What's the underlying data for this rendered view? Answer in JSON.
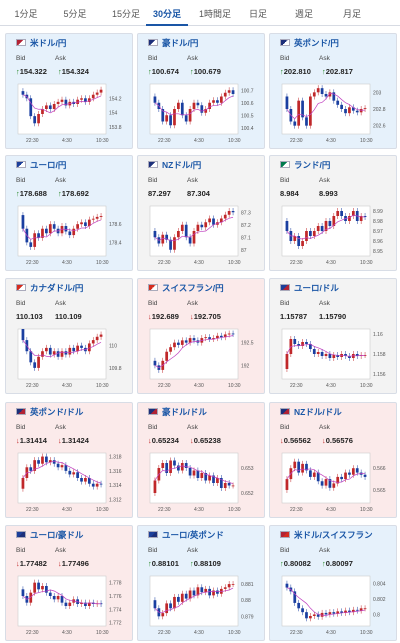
{
  "tabs": [
    {
      "label": "1分足"
    },
    {
      "label": "5分足"
    },
    {
      "label": "15分足"
    },
    {
      "label": "30分足",
      "active": true
    },
    {
      "label": "1時間足"
    },
    {
      "label": "日足"
    },
    {
      "label": "週足"
    },
    {
      "label": "月足"
    }
  ],
  "labels": {
    "bid": "Bid",
    "ask": "Ask"
  },
  "colors": {
    "up_bg": "#e6f1fb",
    "down_bg": "#fbeaea",
    "flat_bg": "#f3f3f3",
    "candle_up": "#c0282a",
    "candle_down": "#1a3fa0",
    "ma_line": "#c040c0",
    "title": "#1a56a6",
    "arrow_up": "#2a8a2a",
    "arrow_down": "#c0282a"
  },
  "cards": [
    {
      "title": "米ドル/円",
      "dir": "up",
      "bid": "154.322",
      "ask": "154.324",
      "flag": "us-jp-flag-icon",
      "chart_data": {
        "type": "candlestick",
        "x_ticks": [
          "22:30",
          "4:30",
          "10:30"
        ],
        "y_ticks": [
          "154.2",
          "154",
          "153.8"
        ],
        "ylim": [
          153.7,
          154.4
        ],
        "close": [
          154.25,
          154.2,
          153.95,
          153.85,
          153.98,
          154.05,
          154.1,
          154.05,
          154.12,
          154.15,
          154.18,
          154.1,
          154.15,
          154.12,
          154.18,
          154.2,
          154.15,
          154.2,
          154.25,
          154.28,
          154.32
        ]
      }
    },
    {
      "title": "豪ドル/円",
      "dir": "up",
      "bid": "100.674",
      "ask": "100.679",
      "flag": "au-jp-flag-icon",
      "chart_data": {
        "type": "candlestick",
        "x_ticks": [
          "22:30",
          "4:30",
          "10:30"
        ],
        "y_ticks": [
          "100.7",
          "100.6",
          "100.5",
          "100.4"
        ],
        "ylim": [
          100.35,
          100.75
        ],
        "close": [
          100.6,
          100.55,
          100.45,
          100.5,
          100.42,
          100.55,
          100.6,
          100.5,
          100.45,
          100.55,
          100.6,
          100.58,
          100.52,
          100.55,
          100.6,
          100.62,
          100.6,
          100.65,
          100.68,
          100.7,
          100.67
        ]
      }
    },
    {
      "title": "英ポンド/円",
      "dir": "up",
      "bid": "202.810",
      "ask": "202.817",
      "flag": "gb-jp-flag-icon",
      "chart_data": {
        "type": "candlestick",
        "x_ticks": [
          "22:30",
          "4:30",
          "10:30"
        ],
        "y_ticks": [
          "203",
          "202.8",
          "202.6"
        ],
        "ylim": [
          202.5,
          203.1
        ],
        "close": [
          202.8,
          202.65,
          202.6,
          202.9,
          202.7,
          202.6,
          202.95,
          203.0,
          203.05,
          202.98,
          202.95,
          203.0,
          202.9,
          202.85,
          202.8,
          202.75,
          202.82,
          202.78,
          202.76,
          202.8,
          202.81
        ]
      }
    },
    {
      "title": "ユーロ/円",
      "dir": "up",
      "bid": "178.688",
      "ask": "178.692",
      "flag": "eu-jp-flag-icon",
      "chart_data": {
        "type": "candlestick",
        "x_ticks": [
          "22:30",
          "4:30",
          "10:30"
        ],
        "y_ticks": [
          "178.6",
          "178.4"
        ],
        "ylim": [
          178.25,
          178.8
        ],
        "close": [
          178.55,
          178.4,
          178.35,
          178.5,
          178.45,
          178.55,
          178.5,
          178.6,
          178.55,
          178.5,
          178.58,
          178.52,
          178.48,
          178.55,
          178.6,
          178.62,
          178.58,
          178.65,
          178.66,
          178.68,
          178.69
        ]
      }
    },
    {
      "title": "NZドル/円",
      "dir": "flat",
      "bid": "87.297",
      "ask": "87.304",
      "flag": "nz-jp-flag-icon",
      "chart_data": {
        "type": "candlestick",
        "x_ticks": [
          "22:30",
          "4:30",
          "10:30"
        ],
        "y_ticks": [
          "87.3",
          "87.2",
          "87.1",
          "87"
        ],
        "ylim": [
          86.95,
          87.35
        ],
        "close": [
          87.1,
          87.05,
          87.12,
          87.08,
          87.0,
          87.1,
          87.15,
          87.2,
          87.1,
          87.05,
          87.15,
          87.2,
          87.18,
          87.22,
          87.25,
          87.2,
          87.22,
          87.25,
          87.28,
          87.31,
          87.3
        ]
      }
    },
    {
      "title": "ランド/円",
      "dir": "flat",
      "bid": "8.984",
      "ask": "8.993",
      "flag": "za-jp-flag-icon",
      "chart_data": {
        "type": "candlestick",
        "x_ticks": [
          "22:30",
          "4:30",
          "10:30"
        ],
        "y_ticks": [
          "8.99",
          "8.98",
          "8.97",
          "8.96",
          "8.95"
        ],
        "ylim": [
          8.945,
          8.995
        ],
        "close": [
          8.97,
          8.96,
          8.965,
          8.955,
          8.96,
          8.97,
          8.965,
          8.97,
          8.975,
          8.97,
          8.98,
          8.975,
          8.985,
          8.99,
          8.985,
          8.98,
          8.985,
          8.99,
          8.98,
          8.985,
          8.984
        ]
      }
    },
    {
      "title": "カナダドル/円",
      "dir": "flat",
      "bid": "110.103",
      "ask": "110.109",
      "flag": "ca-jp-flag-icon",
      "chart_data": {
        "type": "candlestick",
        "x_ticks": [
          "22:30",
          "4:30",
          "10:30"
        ],
        "y_ticks": [
          "110",
          "109.8"
        ],
        "ylim": [
          109.7,
          110.15
        ],
        "close": [
          110.05,
          109.95,
          109.85,
          109.8,
          109.9,
          109.95,
          109.98,
          109.92,
          109.95,
          109.9,
          109.95,
          109.92,
          109.98,
          109.95,
          110.0,
          109.98,
          109.95,
          110.02,
          110.05,
          110.08,
          110.1
        ]
      }
    },
    {
      "title": "スイスフラン/円",
      "dir": "down",
      "bid": "192.689",
      "ask": "192.705",
      "flag": "ch-jp-flag-icon",
      "chart_data": {
        "type": "candlestick",
        "x_ticks": [
          "22:30",
          "4:30",
          "10:30"
        ],
        "y_ticks": [
          "192.5",
          "192"
        ],
        "ylim": [
          191.7,
          192.8
        ],
        "close": [
          192.0,
          191.9,
          192.1,
          192.3,
          192.4,
          192.5,
          192.45,
          192.55,
          192.5,
          192.6,
          192.55,
          192.5,
          192.6,
          192.62,
          192.58,
          192.6,
          192.65,
          192.62,
          192.68,
          192.7,
          192.69
        ]
      }
    },
    {
      "title": "ユーロ/ドル",
      "dir": "flat",
      "bid": "1.15787",
      "ask": "1.15790",
      "flag": "eu-us-flag-icon",
      "chart_data": {
        "type": "candlestick",
        "x_ticks": [
          "22:30",
          "4:30",
          "10:30"
        ],
        "y_ticks": [
          "1.16",
          "1.158",
          "1.156"
        ],
        "ylim": [
          1.1555,
          1.1605
        ],
        "close": [
          1.158,
          1.1595,
          1.159,
          1.1588,
          1.1592,
          1.159,
          1.1585,
          1.158,
          1.1582,
          1.1578,
          1.158,
          1.1576,
          1.1579,
          1.1577,
          1.158,
          1.1578,
          1.1576,
          1.158,
          1.1578,
          1.1579,
          1.1579
        ]
      }
    },
    {
      "title": "英ポンド/ドル",
      "dir": "down",
      "bid": "1.31414",
      "ask": "1.31424",
      "flag": "gb-us-flag-icon",
      "chart_data": {
        "type": "candlestick",
        "x_ticks": [
          "22:30",
          "4:30",
          "10:30"
        ],
        "y_ticks": [
          "1.318",
          "1.316",
          "1.314",
          "1.312"
        ],
        "ylim": [
          1.3115,
          1.3185
        ],
        "close": [
          1.315,
          1.3165,
          1.316,
          1.3175,
          1.317,
          1.318,
          1.3172,
          1.3175,
          1.317,
          1.3165,
          1.3168,
          1.316,
          1.3155,
          1.3158,
          1.315,
          1.3145,
          1.315,
          1.3142,
          1.3138,
          1.3142,
          1.3141
        ]
      }
    },
    {
      "title": "豪ドル/ドル",
      "dir": "down",
      "bid": "0.65234",
      "ask": "0.65238",
      "flag": "au-us-flag-icon",
      "chart_data": {
        "type": "candlestick",
        "x_ticks": [
          "22:30",
          "4:30",
          "10:30"
        ],
        "y_ticks": [
          "0.653",
          "0.652"
        ],
        "ylim": [
          0.6516,
          0.6536
        ],
        "close": [
          0.6525,
          0.653,
          0.6532,
          0.6528,
          0.6533,
          0.6531,
          0.6529,
          0.6532,
          0.653,
          0.6527,
          0.6529,
          0.6526,
          0.6528,
          0.6525,
          0.6527,
          0.6524,
          0.6526,
          0.6522,
          0.6524,
          0.6523,
          0.6523
        ]
      }
    },
    {
      "title": "NZドル/ドル",
      "dir": "down",
      "bid": "0.56562",
      "ask": "0.56576",
      "flag": "nz-us-flag-icon",
      "chart_data": {
        "type": "candlestick",
        "x_ticks": [
          "22:30",
          "4:30",
          "10:30"
        ],
        "y_ticks": [
          "0.566",
          "0.565"
        ],
        "ylim": [
          0.5644,
          0.5667
        ],
        "close": [
          0.5655,
          0.566,
          0.5663,
          0.5658,
          0.5662,
          0.5659,
          0.5656,
          0.5658,
          0.5654,
          0.5652,
          0.5655,
          0.5651,
          0.5653,
          0.5656,
          0.5655,
          0.5658,
          0.5657,
          0.566,
          0.5658,
          0.5657,
          0.5656
        ]
      }
    },
    {
      "title": "ユーロ/豪ドル",
      "dir": "down",
      "bid": "1.77482",
      "ask": "1.77496",
      "flag": "eu-au-flag-icon",
      "chart_data": {
        "type": "candlestick",
        "x_ticks": [
          "22:30",
          "4:30",
          "10:30"
        ],
        "y_ticks": [
          "1.778",
          "1.776",
          "1.774",
          "1.772"
        ],
        "ylim": [
          1.7715,
          1.779
        ],
        "close": [
          1.776,
          1.775,
          1.7765,
          1.778,
          1.777,
          1.7775,
          1.7765,
          1.776,
          1.7755,
          1.776,
          1.775,
          1.7745,
          1.775,
          1.7755,
          1.7748,
          1.775,
          1.7745,
          1.775,
          1.7748,
          1.7749,
          1.7748
        ]
      }
    },
    {
      "title": "ユーロ/英ポンド",
      "dir": "up",
      "bid": "0.88101",
      "ask": "0.88109",
      "flag": "eu-gb-flag-icon",
      "chart_data": {
        "type": "candlestick",
        "x_ticks": [
          "22:30",
          "4:30",
          "10:30"
        ],
        "y_ticks": [
          "0.881",
          "0.88",
          "0.879"
        ],
        "ylim": [
          0.8784,
          0.8815
        ],
        "close": [
          0.8795,
          0.879,
          0.8792,
          0.8798,
          0.8795,
          0.8802,
          0.8799,
          0.8804,
          0.8801,
          0.8806,
          0.8803,
          0.8808,
          0.8805,
          0.8807,
          0.8803,
          0.8806,
          0.8804,
          0.8807,
          0.8808,
          0.881,
          0.881
        ]
      }
    },
    {
      "title": "米ドル/スイスフラン",
      "dir": "up",
      "bid": "0.80082",
      "ask": "0.80097",
      "flag": "us-ch-flag-icon",
      "chart_data": {
        "type": "candlestick",
        "x_ticks": [
          "22:30",
          "4:30",
          "10:30"
        ],
        "y_ticks": [
          "0.804",
          "0.802",
          "0.8"
        ],
        "ylim": [
          0.7985,
          0.805
        ],
        "close": [
          0.8035,
          0.803,
          0.8015,
          0.8008,
          0.8003,
          0.7995,
          0.7998,
          0.8,
          0.7997,
          0.8002,
          0.8,
          0.8003,
          0.8001,
          0.8004,
          0.8002,
          0.8005,
          0.8003,
          0.8006,
          0.8005,
          0.8008,
          0.8008
        ]
      }
    }
  ]
}
